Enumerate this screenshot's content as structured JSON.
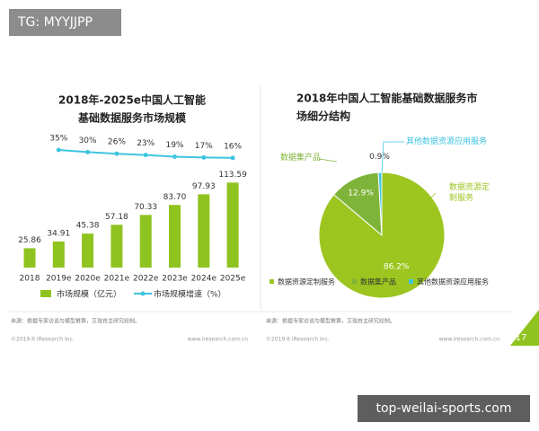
{
  "watermarks": {
    "top": "TG: MYYJJPP",
    "bottom": "top-weilai-sports.com"
  },
  "chart_data": [
    {
      "type": "bar",
      "title": [
        "2018年-2025e中国人工智能",
        "基础数据服务市场规模"
      ],
      "categories": [
        "2018",
        "2019e",
        "2020e",
        "2021e",
        "2022e",
        "2023e",
        "2024e",
        "2025e"
      ],
      "series": [
        {
          "name": "市场规模（亿元）",
          "type": "bar",
          "color": "#8fc31f",
          "values": [
            25.86,
            34.91,
            45.38,
            57.18,
            70.33,
            83.7,
            97.93,
            113.59
          ],
          "value_labels": [
            "25.86",
            "34.91",
            "45.38",
            "57.18",
            "70.33",
            "83.70",
            "97.93",
            "113.59"
          ]
        },
        {
          "name": "市场规模增速（%）",
          "type": "line",
          "axis": "y2",
          "color": "#3fc4df",
          "values": [
            null,
            35,
            30,
            26,
            23,
            19,
            17,
            16
          ],
          "value_labels": [
            null,
            "35%",
            "30%",
            "26%",
            "23%",
            "19%",
            "17%",
            "16%"
          ]
        }
      ],
      "ylim": [
        0,
        120
      ],
      "y2lim": [
        -250,
        50
      ]
    },
    {
      "type": "pie",
      "title": [
        "2018年中国人工智能基础数据服务市",
        "场细分结构"
      ],
      "categories": [
        "数据资源定制服务",
        "数据集产品",
        "其他数据资源应用服务"
      ],
      "values": [
        86.2,
        12.9,
        0.9
      ],
      "value_labels": [
        "86.2%",
        "12.9%",
        "0.9%"
      ],
      "colors": [
        "#9cc61f",
        "#7fb43a",
        "#3fc4df"
      ]
    }
  ],
  "footer": {
    "source": "来源：根据专家访谈与模型推算，艾瑞自主研究绘制。",
    "copyright": "©2019.6 iResearch Inc.",
    "url": "www.iresearch.com.cn",
    "page": "17"
  }
}
